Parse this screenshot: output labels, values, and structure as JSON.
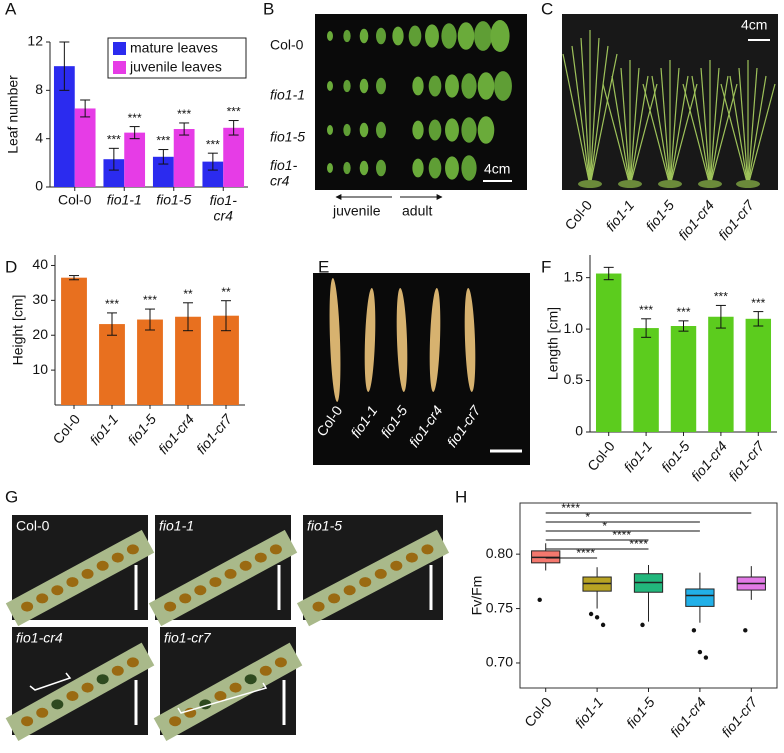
{
  "chart_data": [
    {
      "type": "bar",
      "panel_label": "A",
      "ylabel": "Leaf number",
      "categories": [
        "Col-0",
        "fio1-1",
        "fio1-5",
        "fio1-\ncr4"
      ],
      "series": [
        {
          "name": "mature leaves",
          "color": "#2b2bef",
          "values": [
            10,
            2.3,
            2.5,
            2.1
          ],
          "errors": [
            2,
            0.9,
            0.6,
            0.7
          ],
          "significance": [
            null,
            "***",
            "***",
            "***"
          ]
        },
        {
          "name": "juvenile leaves",
          "color": "#e63ce6",
          "values": [
            6.5,
            4.5,
            4.8,
            4.9
          ],
          "errors": [
            0.7,
            0.5,
            0.5,
            0.6
          ],
          "significance": [
            null,
            "***",
            "***",
            "***"
          ]
        }
      ],
      "ylim": [
        0,
        12
      ],
      "yticks": [
        0,
        4,
        8,
        12
      ],
      "legend": "upper right"
    },
    {
      "type": "bar",
      "panel_label": "D",
      "ylabel": "Height [cm]",
      "categories": [
        "Col-0",
        "fio1-1",
        "fio1-5",
        "fio1-cr4",
        "fio1-cr7"
      ],
      "series": [
        {
          "color": "#e8701f",
          "values": [
            36.5,
            23.2,
            24.5,
            25.3,
            25.6
          ],
          "errors": [
            0.6,
            3.2,
            3,
            4,
            4.3
          ],
          "significance": [
            null,
            "***",
            "***",
            "**",
            "**"
          ]
        }
      ],
      "ylim": [
        0,
        43
      ],
      "yticks": [
        10,
        20,
        30,
        40
      ]
    },
    {
      "type": "bar",
      "panel_label": "F",
      "ylabel": "Length [cm]",
      "categories": [
        "Col-0",
        "fio1-1",
        "fio1-5",
        "fio1-cr4",
        "fio1-cr7"
      ],
      "series": [
        {
          "color": "#5ccc1e",
          "values": [
            1.54,
            1.01,
            1.03,
            1.12,
            1.1
          ],
          "errors": [
            0.06,
            0.09,
            0.05,
            0.11,
            0.07
          ],
          "significance": [
            null,
            "***",
            "***",
            "***",
            "***"
          ]
        }
      ],
      "ylim": [
        0,
        1.72
      ],
      "yticks": [
        0,
        0.5,
        {
          "value": 1,
          "label": "1.0"
        },
        1.5
      ]
    },
    {
      "type": "box",
      "panel_label": "H",
      "ylabel": "Fv/Fm",
      "categories": [
        "Col-0",
        "fio1-1",
        "fio1-5",
        "fio1-cr4",
        "fio1-cr7"
      ],
      "colors": [
        "#f4786e",
        "#b8a323",
        "#22b77c",
        "#22b0e8",
        "#e27ae6"
      ],
      "boxes": [
        {
          "whislo": 0.785,
          "q1": 0.792,
          "med": 0.797,
          "q3": 0.803,
          "whishi": 0.81,
          "outliers": [
            0.758
          ]
        },
        {
          "whislo": 0.75,
          "q1": 0.766,
          "med": 0.773,
          "q3": 0.779,
          "whishi": 0.788,
          "outliers": [
            0.745,
            0.742,
            0.735
          ]
        },
        {
          "whislo": 0.738,
          "q1": 0.765,
          "med": 0.774,
          "q3": 0.782,
          "whishi": 0.79,
          "outliers": [
            0.735
          ]
        },
        {
          "whislo": 0.737,
          "q1": 0.752,
          "med": 0.762,
          "q3": 0.768,
          "whishi": 0.783,
          "outliers": [
            0.73,
            0.71,
            0.705
          ]
        },
        {
          "whislo": 0.758,
          "q1": 0.767,
          "med": 0.773,
          "q3": 0.779,
          "whishi": 0.789,
          "outliers": [
            0.73
          ]
        }
      ],
      "comparisons": [
        {
          "to": "fio1-cr7",
          "label": "****"
        },
        {
          "to": "fio1-cr4",
          "label": "*"
        },
        {
          "to": "fio1-cr4",
          "label": "*"
        },
        {
          "to": "fio1-5",
          "label": "****"
        },
        {
          "to": "fio1-5",
          "label": "****"
        },
        {
          "to": "fio1-1",
          "label": "****"
        }
      ],
      "ylim": [
        0.677,
        0.847
      ],
      "yticks": [
        {
          "value": 0.7,
          "label": "0.70"
        },
        0.75,
        {
          "value": 0.8,
          "label": "0.80"
        }
      ]
    }
  ],
  "photos": {
    "B": {
      "panel_label": "B",
      "labels": [
        "Col-0",
        "fio1-1",
        "fio1-5",
        "fio1-\ncr4"
      ],
      "scale_bar": "4cm",
      "arrows": [
        "juvenile",
        "adult"
      ]
    },
    "C": {
      "panel_label": "C",
      "labels": [
        "Col-0",
        "fio1-1",
        "fio1-5",
        "fio1-cr4",
        "fio1-cr7"
      ],
      "scale_bar": "4cm"
    },
    "E": {
      "panel_label": "E",
      "labels": [
        "Col-0",
        "fio1-1",
        "fio1-5",
        "fio1-cr4",
        "fio1-cr7"
      ]
    },
    "G": {
      "panel_label": "G",
      "labels": [
        "Col-0",
        "fio1-1",
        "fio1-5",
        "fio1-cr4",
        "fio1-cr7"
      ]
    }
  }
}
